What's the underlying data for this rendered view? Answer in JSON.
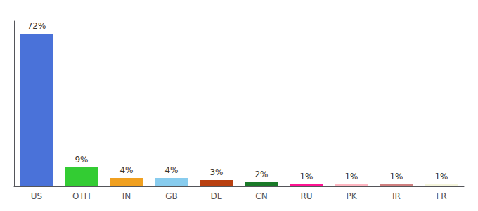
{
  "chart_data": {
    "type": "bar",
    "categories": [
      "US",
      "OTH",
      "IN",
      "GB",
      "DE",
      "CN",
      "RU",
      "PK",
      "IR",
      "FR"
    ],
    "values": [
      72,
      9,
      4,
      4,
      3,
      2,
      1,
      1,
      1,
      1
    ],
    "value_labels": [
      "72%",
      "9%",
      "4%",
      "4%",
      "3%",
      "2%",
      "1%",
      "1%",
      "1%",
      "1%"
    ],
    "colors": [
      "#4a72d9",
      "#33cc33",
      "#f0a020",
      "#88ccee",
      "#b84010",
      "#1a7a28",
      "#ff1493",
      "#ffb6c1",
      "#d08080",
      "#f5f5dc"
    ],
    "ylim": [
      0,
      78
    ],
    "grid": false,
    "tick_labels": "x",
    "data_labels": true
  }
}
